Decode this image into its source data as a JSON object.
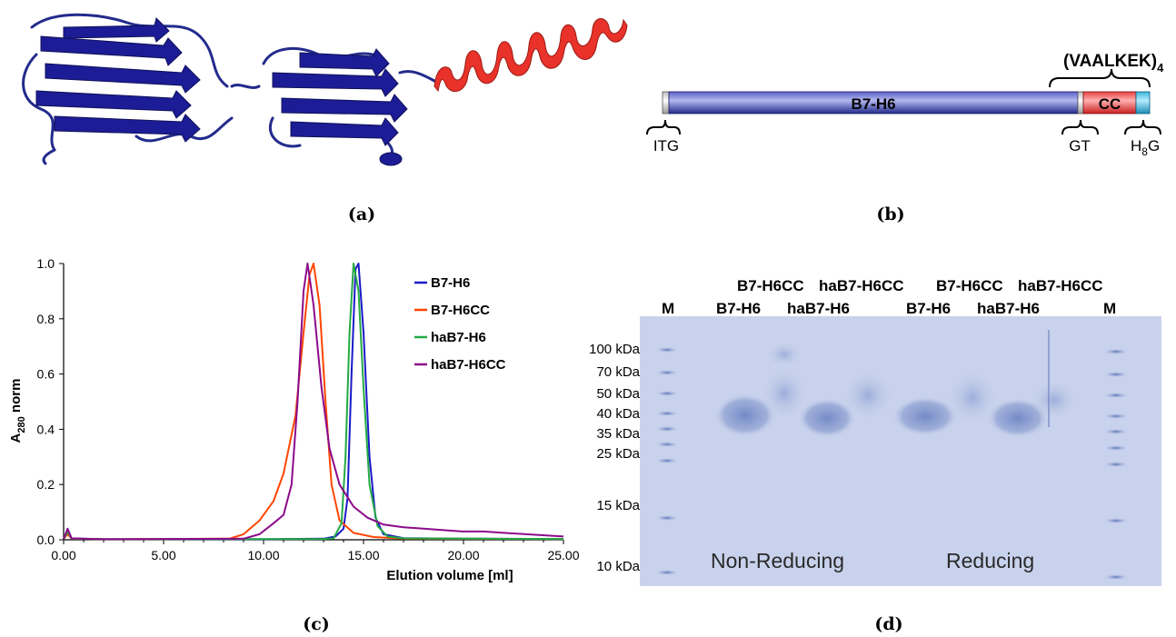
{
  "panels": {
    "a": {
      "caption": "(a)"
    },
    "b": {
      "caption": "(b)",
      "main_domain": "B7-H6",
      "cc_domain": "CC",
      "repeat_label": "(VAALKEK)",
      "repeat_sub": "4",
      "itg": "ITG",
      "gt": "GT",
      "h8g_h": "H",
      "h8g_sub": "8",
      "h8g_g": "G"
    },
    "c": {
      "caption": "(c)"
    },
    "d": {
      "caption": "(d)",
      "lanes": [
        "M",
        "B7-H6",
        "B7-H6CC",
        "haB7-H6",
        "haB7-H6CC",
        "B7-H6",
        "B7-H6CC",
        "haB7-H6",
        "haB7-H6CC",
        "M"
      ],
      "markers": [
        "100 kDa",
        "70 kDa",
        "50 kDa",
        "40 kDa",
        "35 kDa",
        "25 kDa",
        "15 kDa",
        "10 kDa"
      ],
      "conditions": [
        "Non-Reducing",
        "Reducing"
      ]
    }
  },
  "chart_data": {
    "type": "line",
    "title": "",
    "xlabel": "Elution volume [ml]",
    "ylabel_main": "A",
    "ylabel_sub": "280",
    "ylabel_rest": " norm",
    "xlim": [
      0,
      25
    ],
    "ylim": [
      0,
      1
    ],
    "x_ticks": [
      "0.00",
      "5.00",
      "10.00",
      "15.00",
      "20.00",
      "25.00"
    ],
    "y_ticks": [
      "0.0",
      "0.2",
      "0.4",
      "0.6",
      "0.8",
      "1.0"
    ],
    "legend_position": "right",
    "series": [
      {
        "name": "B7-H6",
        "color": "#1a1ac8",
        "points": [
          [
            0,
            0.003
          ],
          [
            0.2,
            0.035
          ],
          [
            0.4,
            0.005
          ],
          [
            2,
            0.002
          ],
          [
            10,
            0.002
          ],
          [
            13,
            0.004
          ],
          [
            13.6,
            0.012
          ],
          [
            14.0,
            0.04
          ],
          [
            14.2,
            0.15
          ],
          [
            14.4,
            0.6
          ],
          [
            14.6,
            0.98
          ],
          [
            14.75,
            1.0
          ],
          [
            15.0,
            0.75
          ],
          [
            15.3,
            0.3
          ],
          [
            15.6,
            0.08
          ],
          [
            16.0,
            0.02
          ],
          [
            17,
            0.006
          ],
          [
            20,
            0.004
          ],
          [
            25,
            0.003
          ]
        ]
      },
      {
        "name": "B7-H6CC",
        "color": "#ff4500",
        "points": [
          [
            0,
            0.003
          ],
          [
            0.2,
            0.02
          ],
          [
            0.4,
            0.004
          ],
          [
            2,
            0.002
          ],
          [
            8.3,
            0.004
          ],
          [
            9,
            0.02
          ],
          [
            9.8,
            0.07
          ],
          [
            10.5,
            0.14
          ],
          [
            11.0,
            0.24
          ],
          [
            11.6,
            0.45
          ],
          [
            12.0,
            0.75
          ],
          [
            12.3,
            0.96
          ],
          [
            12.5,
            1.0
          ],
          [
            12.8,
            0.85
          ],
          [
            13.1,
            0.5
          ],
          [
            13.4,
            0.2
          ],
          [
            13.8,
            0.07
          ],
          [
            14.5,
            0.025
          ],
          [
            15.5,
            0.01
          ],
          [
            17,
            0.004
          ],
          [
            25,
            0.003
          ]
        ]
      },
      {
        "name": "haB7-H6",
        "color": "#22aa44",
        "points": [
          [
            0,
            0.003
          ],
          [
            0.2,
            0.03
          ],
          [
            0.4,
            0.004
          ],
          [
            2,
            0.002
          ],
          [
            13,
            0.003
          ],
          [
            13.5,
            0.005
          ],
          [
            13.9,
            0.06
          ],
          [
            14.1,
            0.3
          ],
          [
            14.3,
            0.75
          ],
          [
            14.5,
            1.0
          ],
          [
            14.75,
            0.9
          ],
          [
            15.0,
            0.55
          ],
          [
            15.3,
            0.2
          ],
          [
            15.7,
            0.05
          ],
          [
            16.2,
            0.012
          ],
          [
            17,
            0.005
          ],
          [
            25,
            0.003
          ]
        ]
      },
      {
        "name": "haB7-H6CC",
        "color": "#8b0a8b",
        "points": [
          [
            0,
            0.003
          ],
          [
            0.2,
            0.04
          ],
          [
            0.4,
            0.005
          ],
          [
            2,
            0.002
          ],
          [
            9,
            0.004
          ],
          [
            9.8,
            0.02
          ],
          [
            10.5,
            0.06
          ],
          [
            11.0,
            0.09
          ],
          [
            11.4,
            0.2
          ],
          [
            11.7,
            0.5
          ],
          [
            12.0,
            0.9
          ],
          [
            12.2,
            1.0
          ],
          [
            12.5,
            0.85
          ],
          [
            12.9,
            0.55
          ],
          [
            13.3,
            0.33
          ],
          [
            13.8,
            0.2
          ],
          [
            14.5,
            0.12
          ],
          [
            15.2,
            0.08
          ],
          [
            16,
            0.055
          ],
          [
            17,
            0.045
          ],
          [
            18,
            0.04
          ],
          [
            19,
            0.035
          ],
          [
            20,
            0.03
          ],
          [
            21,
            0.03
          ],
          [
            22,
            0.025
          ],
          [
            25,
            0.012
          ]
        ]
      }
    ]
  }
}
